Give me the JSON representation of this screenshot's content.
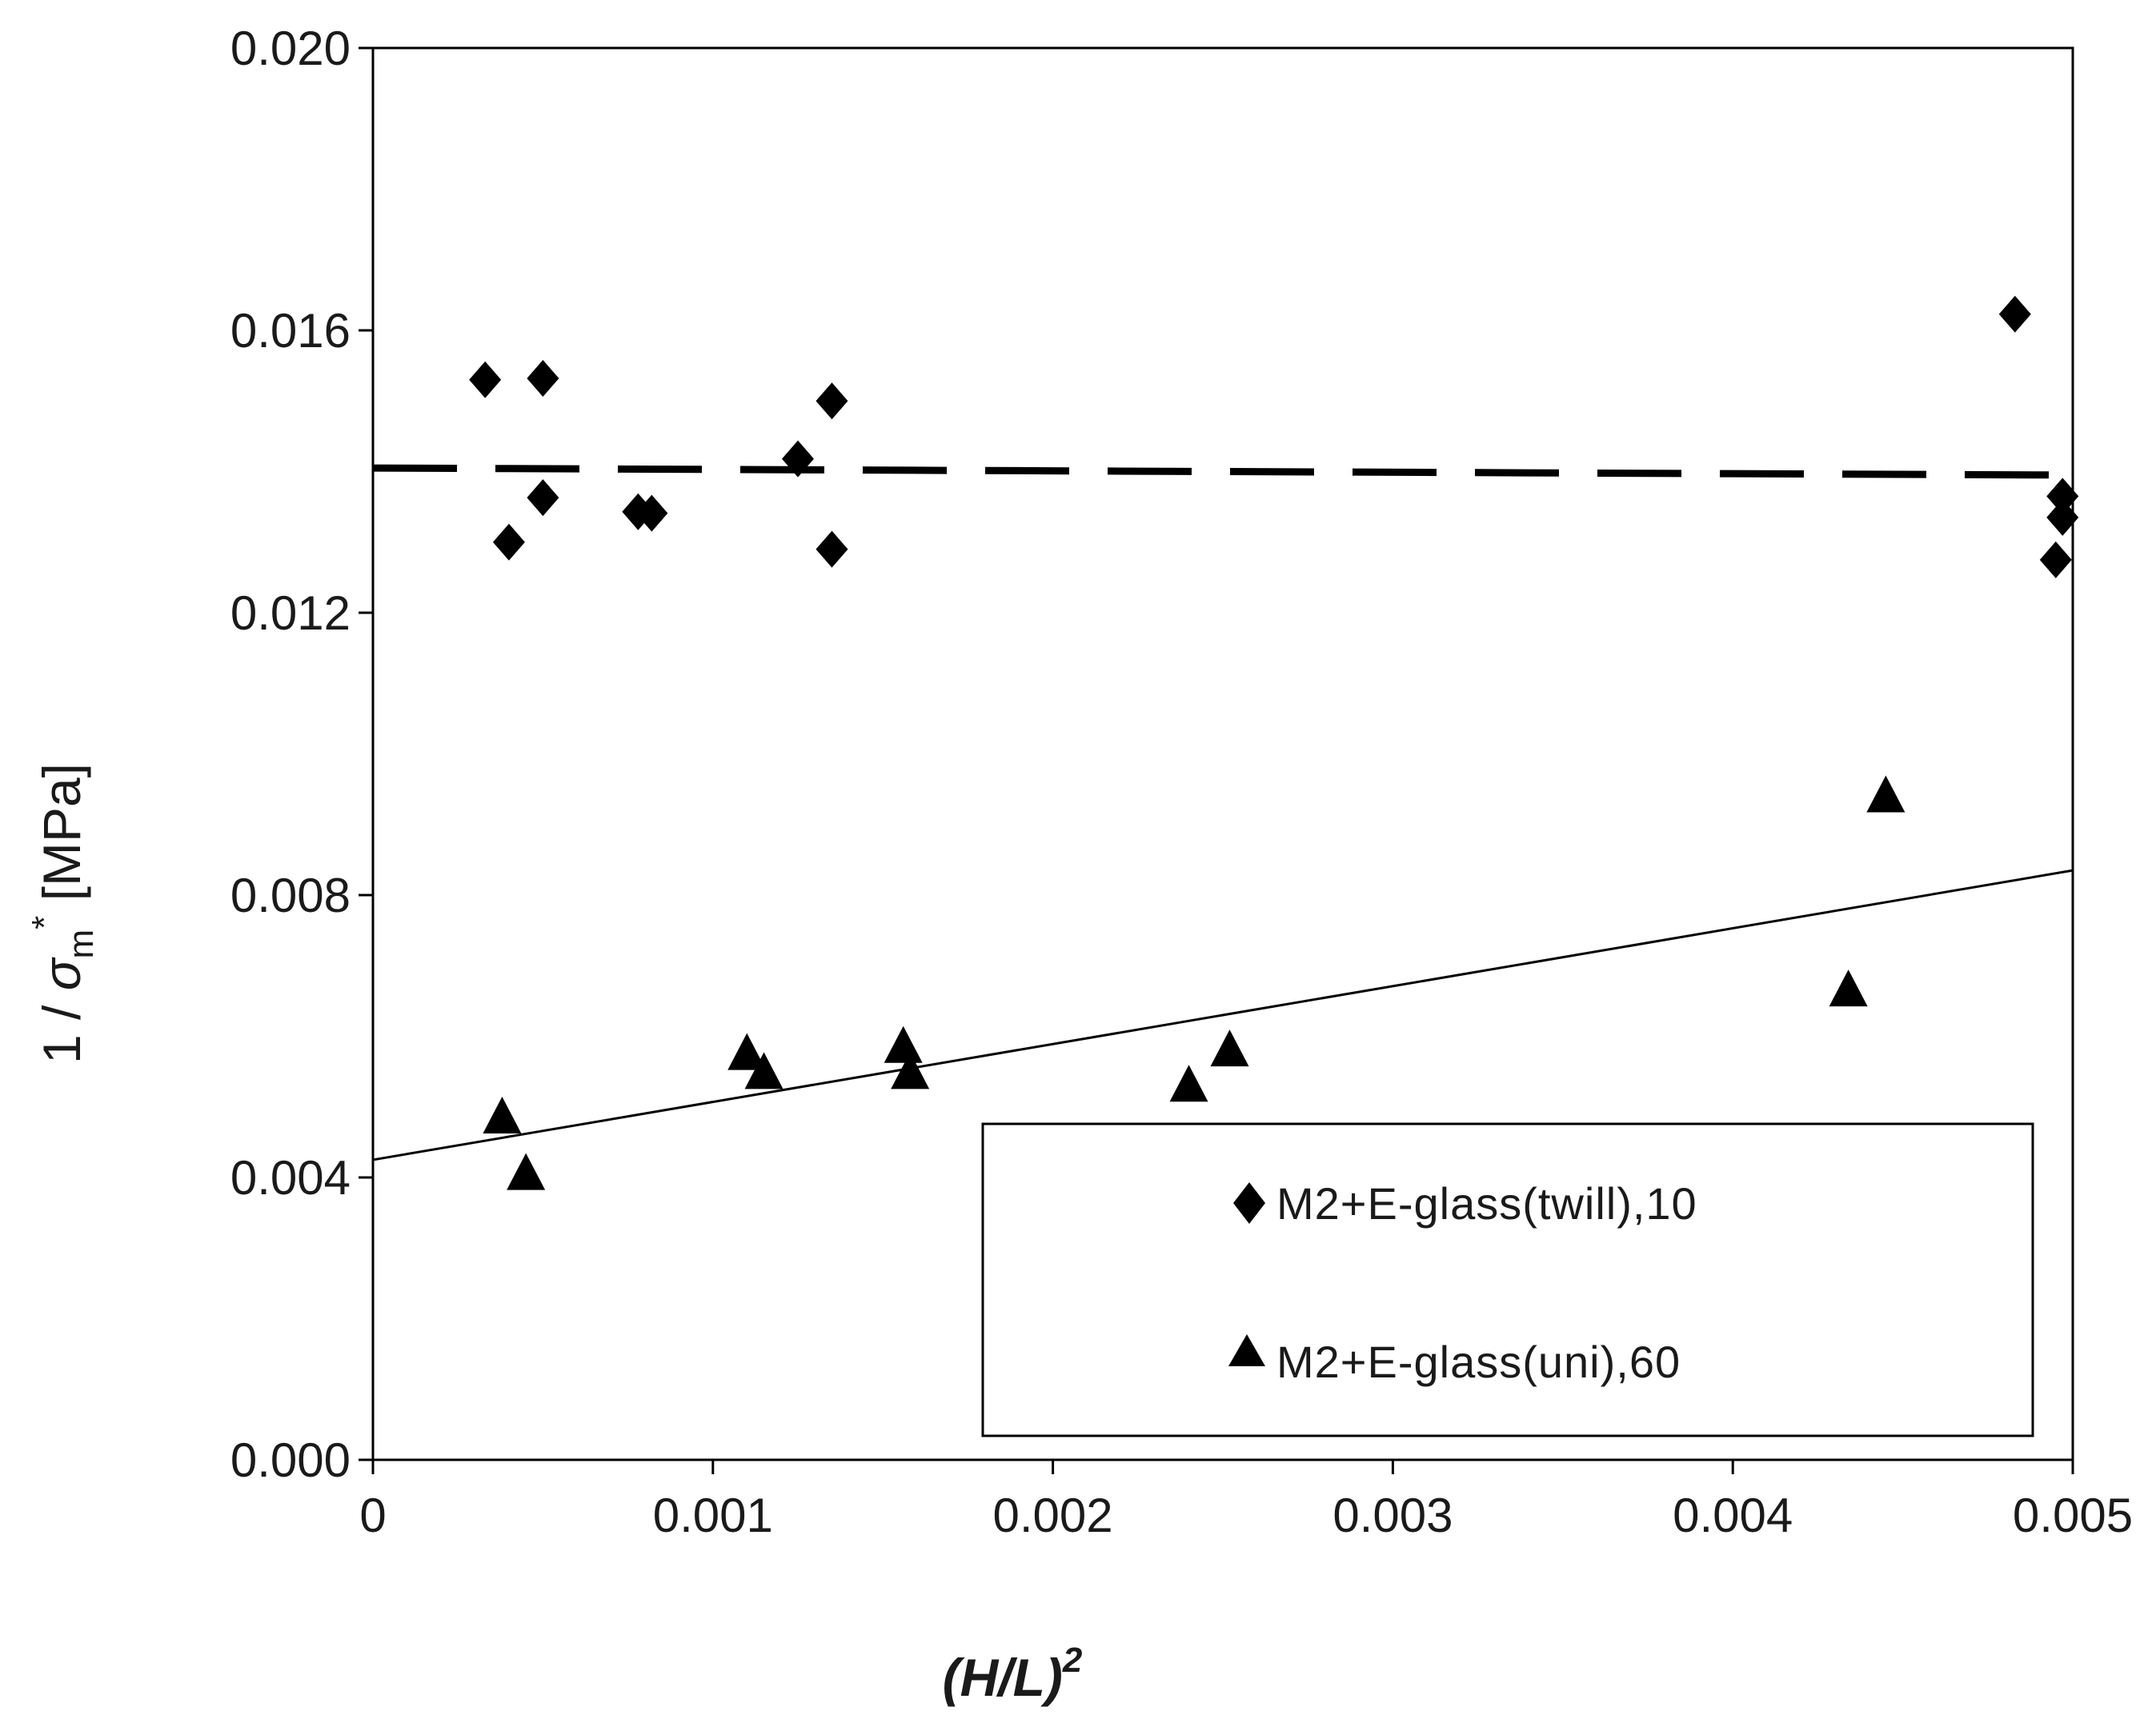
{
  "chart_data": {
    "type": "scatter",
    "title": "",
    "xlabel": "(H/L)",
    "xlabel_superscript": "2",
    "ylabel_prefix": "1 / ",
    "ylabel_symbol": "σ",
    "ylabel_subscript": "m",
    "ylabel_superscript": "*",
    "ylabel_unit": " [MPa]",
    "xlim": [
      0,
      0.005
    ],
    "ylim": [
      0,
      0.02
    ],
    "x_ticks": [
      0,
      0.001,
      0.002,
      0.003,
      0.004,
      0.005
    ],
    "x_tick_labels": [
      "0",
      "0.001",
      "0.002",
      "0.003",
      "0.004",
      "0.005"
    ],
    "y_ticks": [
      0,
      0.004,
      0.008,
      0.012,
      0.016,
      0.02
    ],
    "y_tick_labels": [
      "0.000",
      "0.004",
      "0.008",
      "0.012",
      "0.016",
      "0.020"
    ],
    "legend_position": "bottom-right",
    "grid": false,
    "series": [
      {
        "name": "M2+E-glass(twill),10",
        "marker": "diamond",
        "color": "#000000",
        "points": [
          [
            0.00033,
            0.0153
          ],
          [
            0.0004,
            0.013
          ],
          [
            0.0005,
            0.01532
          ],
          [
            0.0005,
            0.01363
          ],
          [
            0.00078,
            0.01343
          ],
          [
            0.00082,
            0.01341
          ],
          [
            0.00125,
            0.01418
          ],
          [
            0.00135,
            0.015
          ],
          [
            0.00135,
            0.0129
          ],
          [
            0.00483,
            0.01623
          ],
          [
            0.00497,
            0.01365
          ],
          [
            0.00497,
            0.01335
          ],
          [
            0.00495,
            0.01275
          ]
        ],
        "fit": {
          "x": [
            0,
            0.005
          ],
          "y": [
            0.01405,
            0.01395
          ],
          "style": "dashed"
        }
      },
      {
        "name": "M2+E-glass(uni),60",
        "marker": "triangle",
        "color": "#000000",
        "points": [
          [
            0.00038,
            0.00485
          ],
          [
            0.00045,
            0.00405
          ],
          [
            0.0011,
            0.00575
          ],
          [
            0.00115,
            0.00548
          ],
          [
            0.00156,
            0.00585
          ],
          [
            0.00158,
            0.00548
          ],
          [
            0.0024,
            0.0053
          ],
          [
            0.00252,
            0.0058
          ],
          [
            0.00434,
            0.00665
          ],
          [
            0.00445,
            0.0094
          ]
        ],
        "fit": {
          "x": [
            0,
            0.005
          ],
          "y": [
            0.00425,
            0.00835
          ],
          "style": "solid"
        }
      }
    ]
  }
}
